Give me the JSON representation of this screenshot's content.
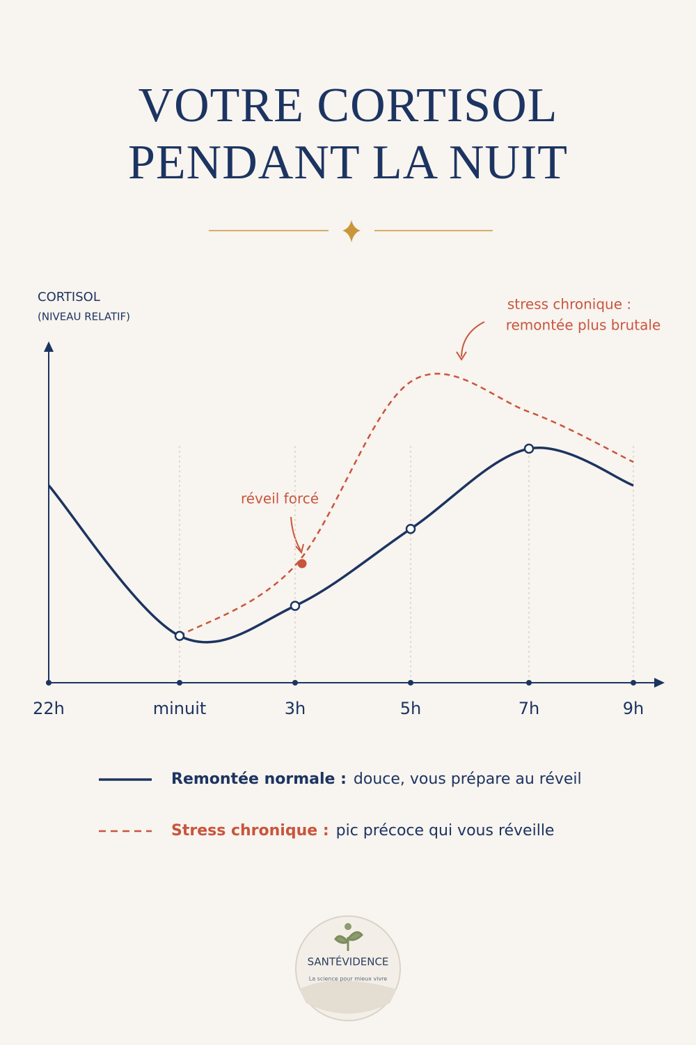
{
  "chart_data": {
    "type": "line",
    "title": [
      "VOTRE CORTISOL",
      "PENDANT LA NUIT"
    ],
    "ylabel": [
      "CORTISOL",
      "(NIVEAU RELATIF)"
    ],
    "categories": [
      "22h",
      "minuit",
      "3h",
      "5h",
      "7h",
      "9h"
    ],
    "ylim": [
      0,
      100
    ],
    "series": [
      {
        "name": "Remontée normale :",
        "description": "douce, vous prépare au réveil",
        "color": "#1c3461",
        "dash": false,
        "values": [
          59,
          14,
          23,
          46,
          70,
          59
        ],
        "markers": [
          false,
          true,
          true,
          true,
          true,
          false
        ]
      },
      {
        "name": "Stress chronique :",
        "description": "pic précoce qui vous réveille",
        "color": "#c8553d",
        "dash": true,
        "values": [
          null,
          14,
          35,
          90,
          81,
          66
        ],
        "markers": [
          false,
          false,
          true,
          false,
          false,
          false
        ]
      }
    ],
    "annotations": [
      {
        "text": "réveil forcé"
      },
      {
        "text": [
          "stress chronique :",
          "remontée plus brutale"
        ]
      }
    ]
  },
  "logo": {
    "name": "SANTÉVIDENCE",
    "tagline": "La science pour mieux vivre"
  }
}
